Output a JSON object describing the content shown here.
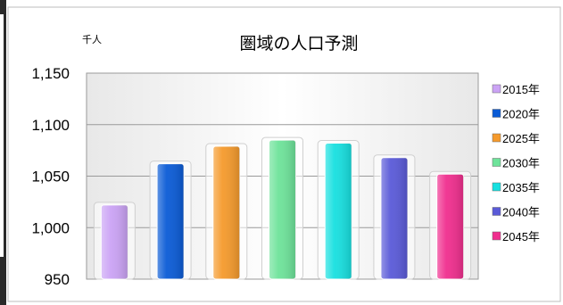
{
  "chart_data": {
    "type": "bar",
    "title": "圏域の人口予測",
    "unit": "千人",
    "categories": [
      "2015年",
      "2020年",
      "2025年",
      "2030年",
      "2035年",
      "2040年",
      "2045年"
    ],
    "values": [
      1022,
      1062,
      1079,
      1085,
      1082,
      1068,
      1052
    ],
    "ylim": [
      950,
      1150
    ],
    "yticks": [
      950,
      1000,
      1050,
      1100,
      1150
    ],
    "ytick_labels": [
      "950",
      "1,000",
      "1,050",
      "1,100",
      "1,150"
    ],
    "colors": [
      "#CBA3F5",
      "#0A5BD6",
      "#F59A2C",
      "#6EE39A",
      "#17E0E0",
      "#5A5AD8",
      "#F02E8E"
    ],
    "grid": true,
    "legend_position": "right",
    "legend_labels": [
      "2015年",
      "2020年",
      "2025年",
      "2030年",
      "2035年",
      "2040年",
      "2045年"
    ]
  }
}
